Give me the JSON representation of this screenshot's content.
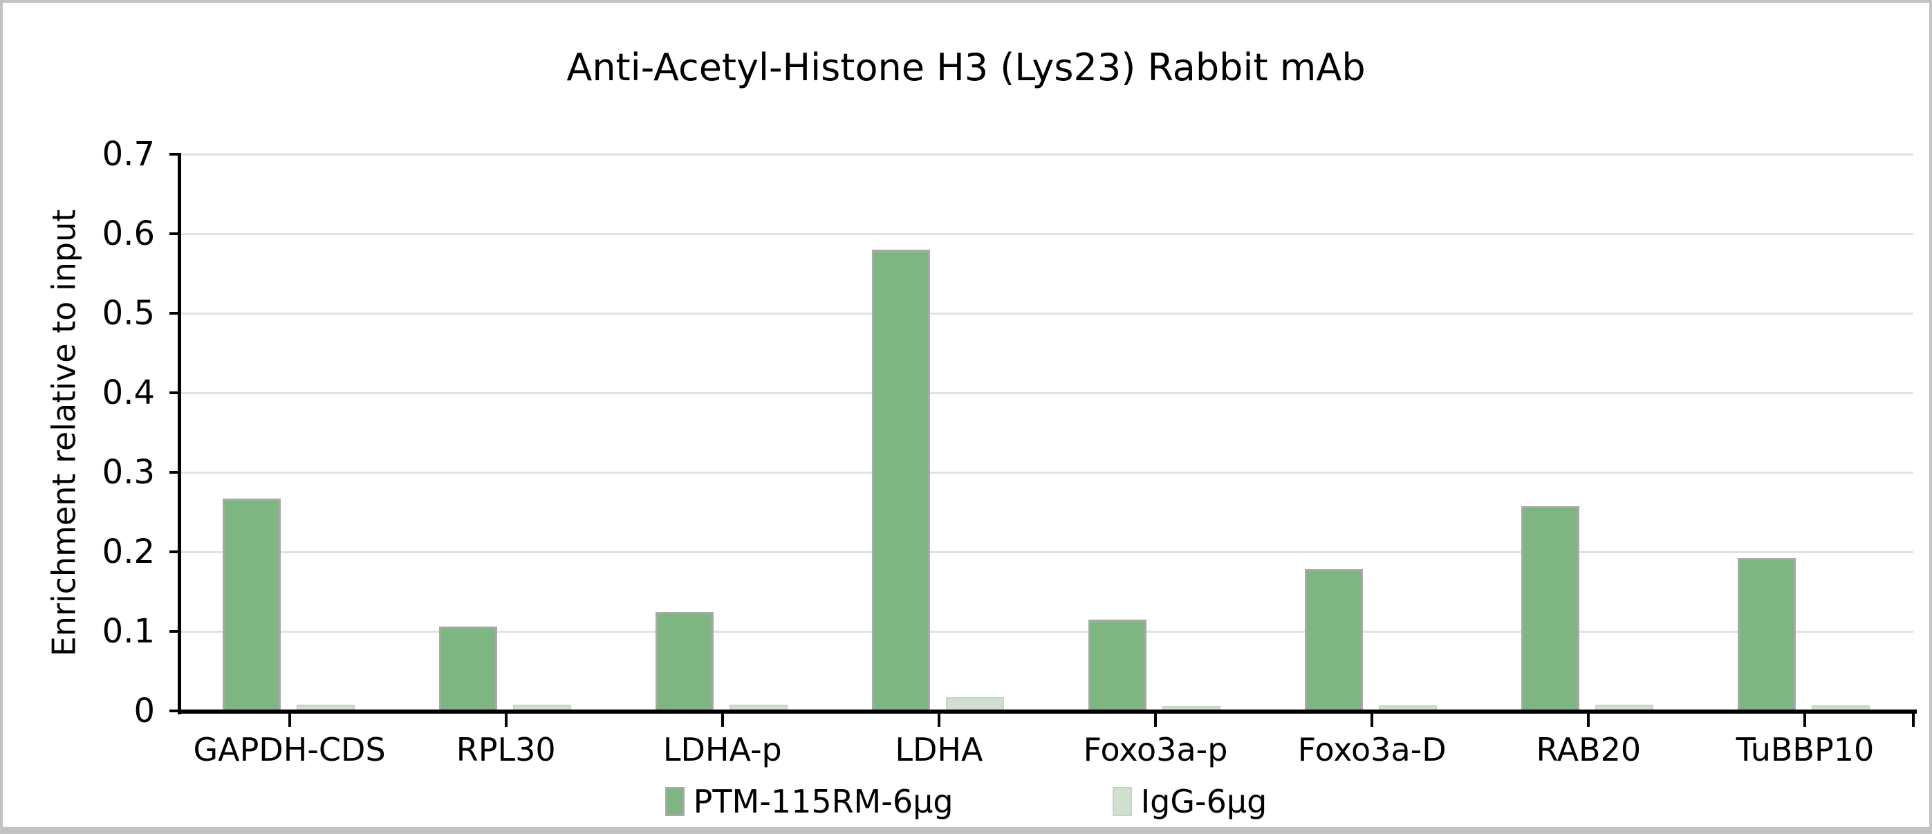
{
  "window": {
    "background": "#ffffff",
    "frame_color": "#c2c2c2"
  },
  "chart_data": {
    "type": "bar",
    "title": "Anti-Acetyl-Histone H3 (Lys23) Rabbit mAb",
    "ylabel": "Enrichment relative to input",
    "xlabel": "",
    "categories": [
      "GAPDH-CDS",
      "RPL30",
      "LDHA-p",
      "LDHA",
      "Foxo3a-p",
      "Foxo3a-D",
      "RAB20",
      "TuBBP10"
    ],
    "series": [
      {
        "name": "PTM-115RM-6µg",
        "color": "#7db681",
        "border_color": "#a8a8a8",
        "values": [
          0.267,
          0.106,
          0.124,
          0.58,
          0.115,
          0.178,
          0.257,
          0.192
        ]
      },
      {
        "name": "IgG-6µg",
        "color": "#d0e0cf",
        "border_color": "#c6d2c5",
        "values": [
          0.008,
          0.008,
          0.008,
          0.017,
          0.006,
          0.007,
          0.008,
          0.007
        ]
      }
    ],
    "ylim": [
      0,
      0.7
    ],
    "ytick_step": 0.1,
    "ytick_labels": [
      "0",
      "0.1",
      "0.2",
      "0.3",
      "0.4",
      "0.5",
      "0.6",
      "0.7"
    ],
    "grid": true,
    "gridline_color": "#e2e2e2",
    "axis_color": "#000000",
    "legend_position": "bottom"
  }
}
